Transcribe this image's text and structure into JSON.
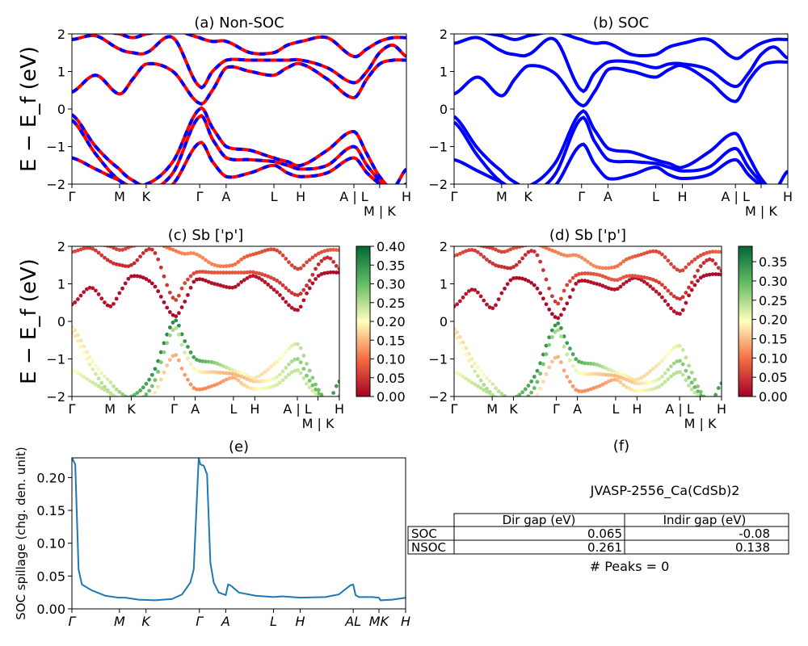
{
  "colors": {
    "soc_line": "#0000ff",
    "nsoc_line": "#ff0000",
    "spillage_line": "#1f77b4",
    "colormap": [
      "#a50026",
      "#f46d43",
      "#ffffbf",
      "#66bd63",
      "#006837"
    ]
  },
  "kpath": {
    "tick_positions": [
      0,
      0.1425,
      0.222,
      0.382,
      0.461,
      0.604,
      0.684,
      0.843,
      0.92,
      1.0
    ],
    "tick_labels": [
      "Γ",
      "M",
      "K",
      "Γ",
      "A",
      "L",
      "H",
      "A | L",
      "M | K",
      "H"
    ],
    "spillage_tick_labels": [
      "Γ",
      "M",
      "K",
      "Γ",
      "A",
      "L",
      "H",
      "AL",
      "MK",
      "H"
    ],
    "sample_k": [
      0,
      0.071,
      0.1425,
      0.182,
      0.222,
      0.302,
      0.382,
      0.42,
      0.461,
      0.533,
      0.604,
      0.644,
      0.684,
      0.763,
      0.843,
      0.882,
      0.92,
      0.96,
      1.0
    ]
  },
  "band_axis": {
    "ylabel": "E − E_f (eV)",
    "ylim": [
      -2,
      2
    ],
    "yticks": [
      "−2",
      "−1",
      "0",
      "1",
      "2"
    ],
    "ytick_values": [
      -2,
      -1,
      0,
      1,
      2
    ]
  },
  "chart_data": [
    {
      "type": "line",
      "title": "(a) Non-SOC",
      "ylabel": "E − E_f (eV)",
      "ylim": [
        -2,
        2
      ],
      "bands": [
        [
          0.45,
          0.9,
          0.4,
          0.8,
          1.2,
          1.0,
          0.15,
          0.5,
          1.1,
          1.0,
          0.9,
          1.1,
          1.2,
          0.8,
          0.3,
          0.8,
          1.2,
          1.3,
          1.3
        ],
        [
          1.85,
          1.95,
          1.6,
          1.5,
          1.5,
          1.9,
          0.6,
          1.0,
          1.3,
          1.3,
          1.3,
          1.3,
          1.3,
          1.1,
          0.7,
          1.0,
          1.5,
          1.7,
          1.4
        ],
        [
          2.1,
          2.1,
          2.0,
          1.9,
          2.0,
          2.1,
          1.9,
          1.8,
          1.8,
          1.5,
          1.5,
          1.7,
          1.8,
          1.9,
          1.4,
          1.6,
          1.8,
          1.9,
          1.9
        ],
        [
          -0.15,
          -1.0,
          -1.6,
          -1.9,
          -2.0,
          -1.4,
          0.0,
          -0.5,
          -1.0,
          -1.1,
          -1.3,
          -1.4,
          -1.5,
          -1.1,
          -0.6,
          -1.2,
          -1.8,
          -2.1,
          -1.6
        ],
        [
          -0.3,
          -1.2,
          -1.9,
          -2.1,
          -2.2,
          -1.7,
          -0.2,
          -0.8,
          -1.3,
          -1.35,
          -1.4,
          -1.5,
          -1.6,
          -1.5,
          -1.0,
          -1.5,
          -1.9,
          -2.2,
          -2.0
        ],
        [
          -1.3,
          -1.6,
          -1.9,
          -2.1,
          -2.3,
          -2.0,
          -0.9,
          -1.4,
          -1.8,
          -1.7,
          -1.5,
          -1.7,
          -1.8,
          -1.7,
          -1.3,
          -1.7,
          -2.0,
          -2.3,
          -2.2
        ]
      ]
    },
    {
      "type": "line",
      "title": "(b) SOC",
      "ylim": [
        -2,
        2
      ],
      "bands": [
        [
          0.4,
          0.85,
          0.35,
          0.8,
          1.15,
          0.95,
          0.1,
          0.45,
          1.05,
          1.0,
          0.85,
          1.05,
          1.15,
          0.75,
          0.2,
          0.75,
          1.15,
          1.25,
          1.25
        ],
        [
          1.75,
          1.9,
          1.55,
          1.45,
          1.45,
          1.85,
          0.5,
          0.95,
          1.25,
          1.25,
          1.1,
          1.2,
          1.2,
          1.05,
          0.6,
          0.95,
          1.45,
          1.65,
          1.35
        ],
        [
          2.05,
          2.05,
          1.95,
          1.85,
          1.95,
          2.05,
          1.85,
          1.75,
          1.75,
          1.45,
          1.45,
          1.65,
          1.75,
          1.85,
          1.35,
          1.55,
          1.75,
          1.85,
          1.85
        ],
        [
          -0.2,
          -1.05,
          -1.65,
          -1.95,
          -2.05,
          -1.45,
          -0.08,
          -0.55,
          -1.05,
          -1.15,
          -1.35,
          -1.45,
          -1.55,
          -1.15,
          -0.65,
          -1.25,
          -1.85,
          -2.15,
          -1.65
        ],
        [
          -0.35,
          -1.25,
          -1.95,
          -2.15,
          -2.25,
          -1.75,
          -0.25,
          -0.85,
          -1.35,
          -1.4,
          -1.45,
          -1.55,
          -1.65,
          -1.55,
          -1.05,
          -1.55,
          -1.95,
          -2.25,
          -2.05
        ],
        [
          -1.35,
          -1.65,
          -1.95,
          -2.15,
          -2.35,
          -2.05,
          -0.95,
          -1.45,
          -1.85,
          -1.75,
          -1.55,
          -1.75,
          -1.85,
          -1.75,
          -1.35,
          -1.75,
          -2.05,
          -2.35,
          -2.25
        ]
      ]
    },
    {
      "type": "scatter",
      "title": "(c)  Sb ['p']",
      "ylim": [
        -2,
        2
      ],
      "colorbar_range": [
        0,
        0.4
      ],
      "colorbar_ticks": [
        "0.00",
        "0.05",
        "0.10",
        "0.15",
        "0.20",
        "0.25",
        "0.30",
        "0.35",
        "0.40"
      ],
      "band_source": 0,
      "band_weights": [
        0.02,
        0.08,
        0.12,
        0.36,
        0.3,
        0.24
      ]
    },
    {
      "type": "scatter",
      "title": "(d) Sb ['p']",
      "ylim": [
        -2,
        2
      ],
      "colorbar_range": [
        0,
        0.39
      ],
      "colorbar_ticks": [
        "0.00",
        "0.05",
        "0.10",
        "0.15",
        "0.20",
        "0.25",
        "0.30",
        "0.35"
      ],
      "band_source": 1,
      "band_weights": [
        0.02,
        0.08,
        0.12,
        0.34,
        0.3,
        0.24
      ]
    },
    {
      "type": "line",
      "title": "(e)",
      "ylabel": "SOC spillage (chg. den. unit)",
      "ylim": [
        0,
        0.23
      ],
      "yticks": [
        "0.00",
        "0.05",
        "0.10",
        "0.15",
        "0.20"
      ],
      "ytick_values": [
        0,
        0.05,
        0.1,
        0.15,
        0.2
      ],
      "x": [
        0,
        0.01,
        0.02,
        0.03,
        0.06,
        0.1,
        0.14,
        0.16,
        0.2,
        0.25,
        0.3,
        0.33,
        0.355,
        0.365,
        0.38,
        0.385,
        0.395,
        0.405,
        0.415,
        0.425,
        0.44,
        0.461,
        0.468,
        0.475,
        0.5,
        0.55,
        0.604,
        0.63,
        0.684,
        0.76,
        0.8,
        0.835,
        0.843,
        0.85,
        0.86,
        0.9,
        0.92,
        0.925,
        0.96,
        1.0
      ],
      "y": [
        0.23,
        0.22,
        0.06,
        0.037,
        0.028,
        0.02,
        0.017,
        0.017,
        0.014,
        0.013,
        0.015,
        0.022,
        0.04,
        0.06,
        0.23,
        0.22,
        0.218,
        0.205,
        0.07,
        0.04,
        0.025,
        0.021,
        0.037,
        0.036,
        0.025,
        0.02,
        0.018,
        0.019,
        0.017,
        0.018,
        0.022,
        0.036,
        0.037,
        0.021,
        0.018,
        0.018,
        0.017,
        0.013,
        0.014,
        0.017
      ]
    },
    {
      "type": "table",
      "title": "(f)",
      "subtitle": "JVASP-2556_Ca(CdSb)2",
      "columns": [
        "Dir gap (eV)",
        "Indir gap (eV)"
      ],
      "rows": [
        {
          "label": "SOC",
          "values": [
            "0.065",
            "-0.08"
          ]
        },
        {
          "label": "NSOC",
          "values": [
            "0.261",
            "0.138"
          ]
        }
      ],
      "footer": "# Peaks = 0"
    }
  ]
}
